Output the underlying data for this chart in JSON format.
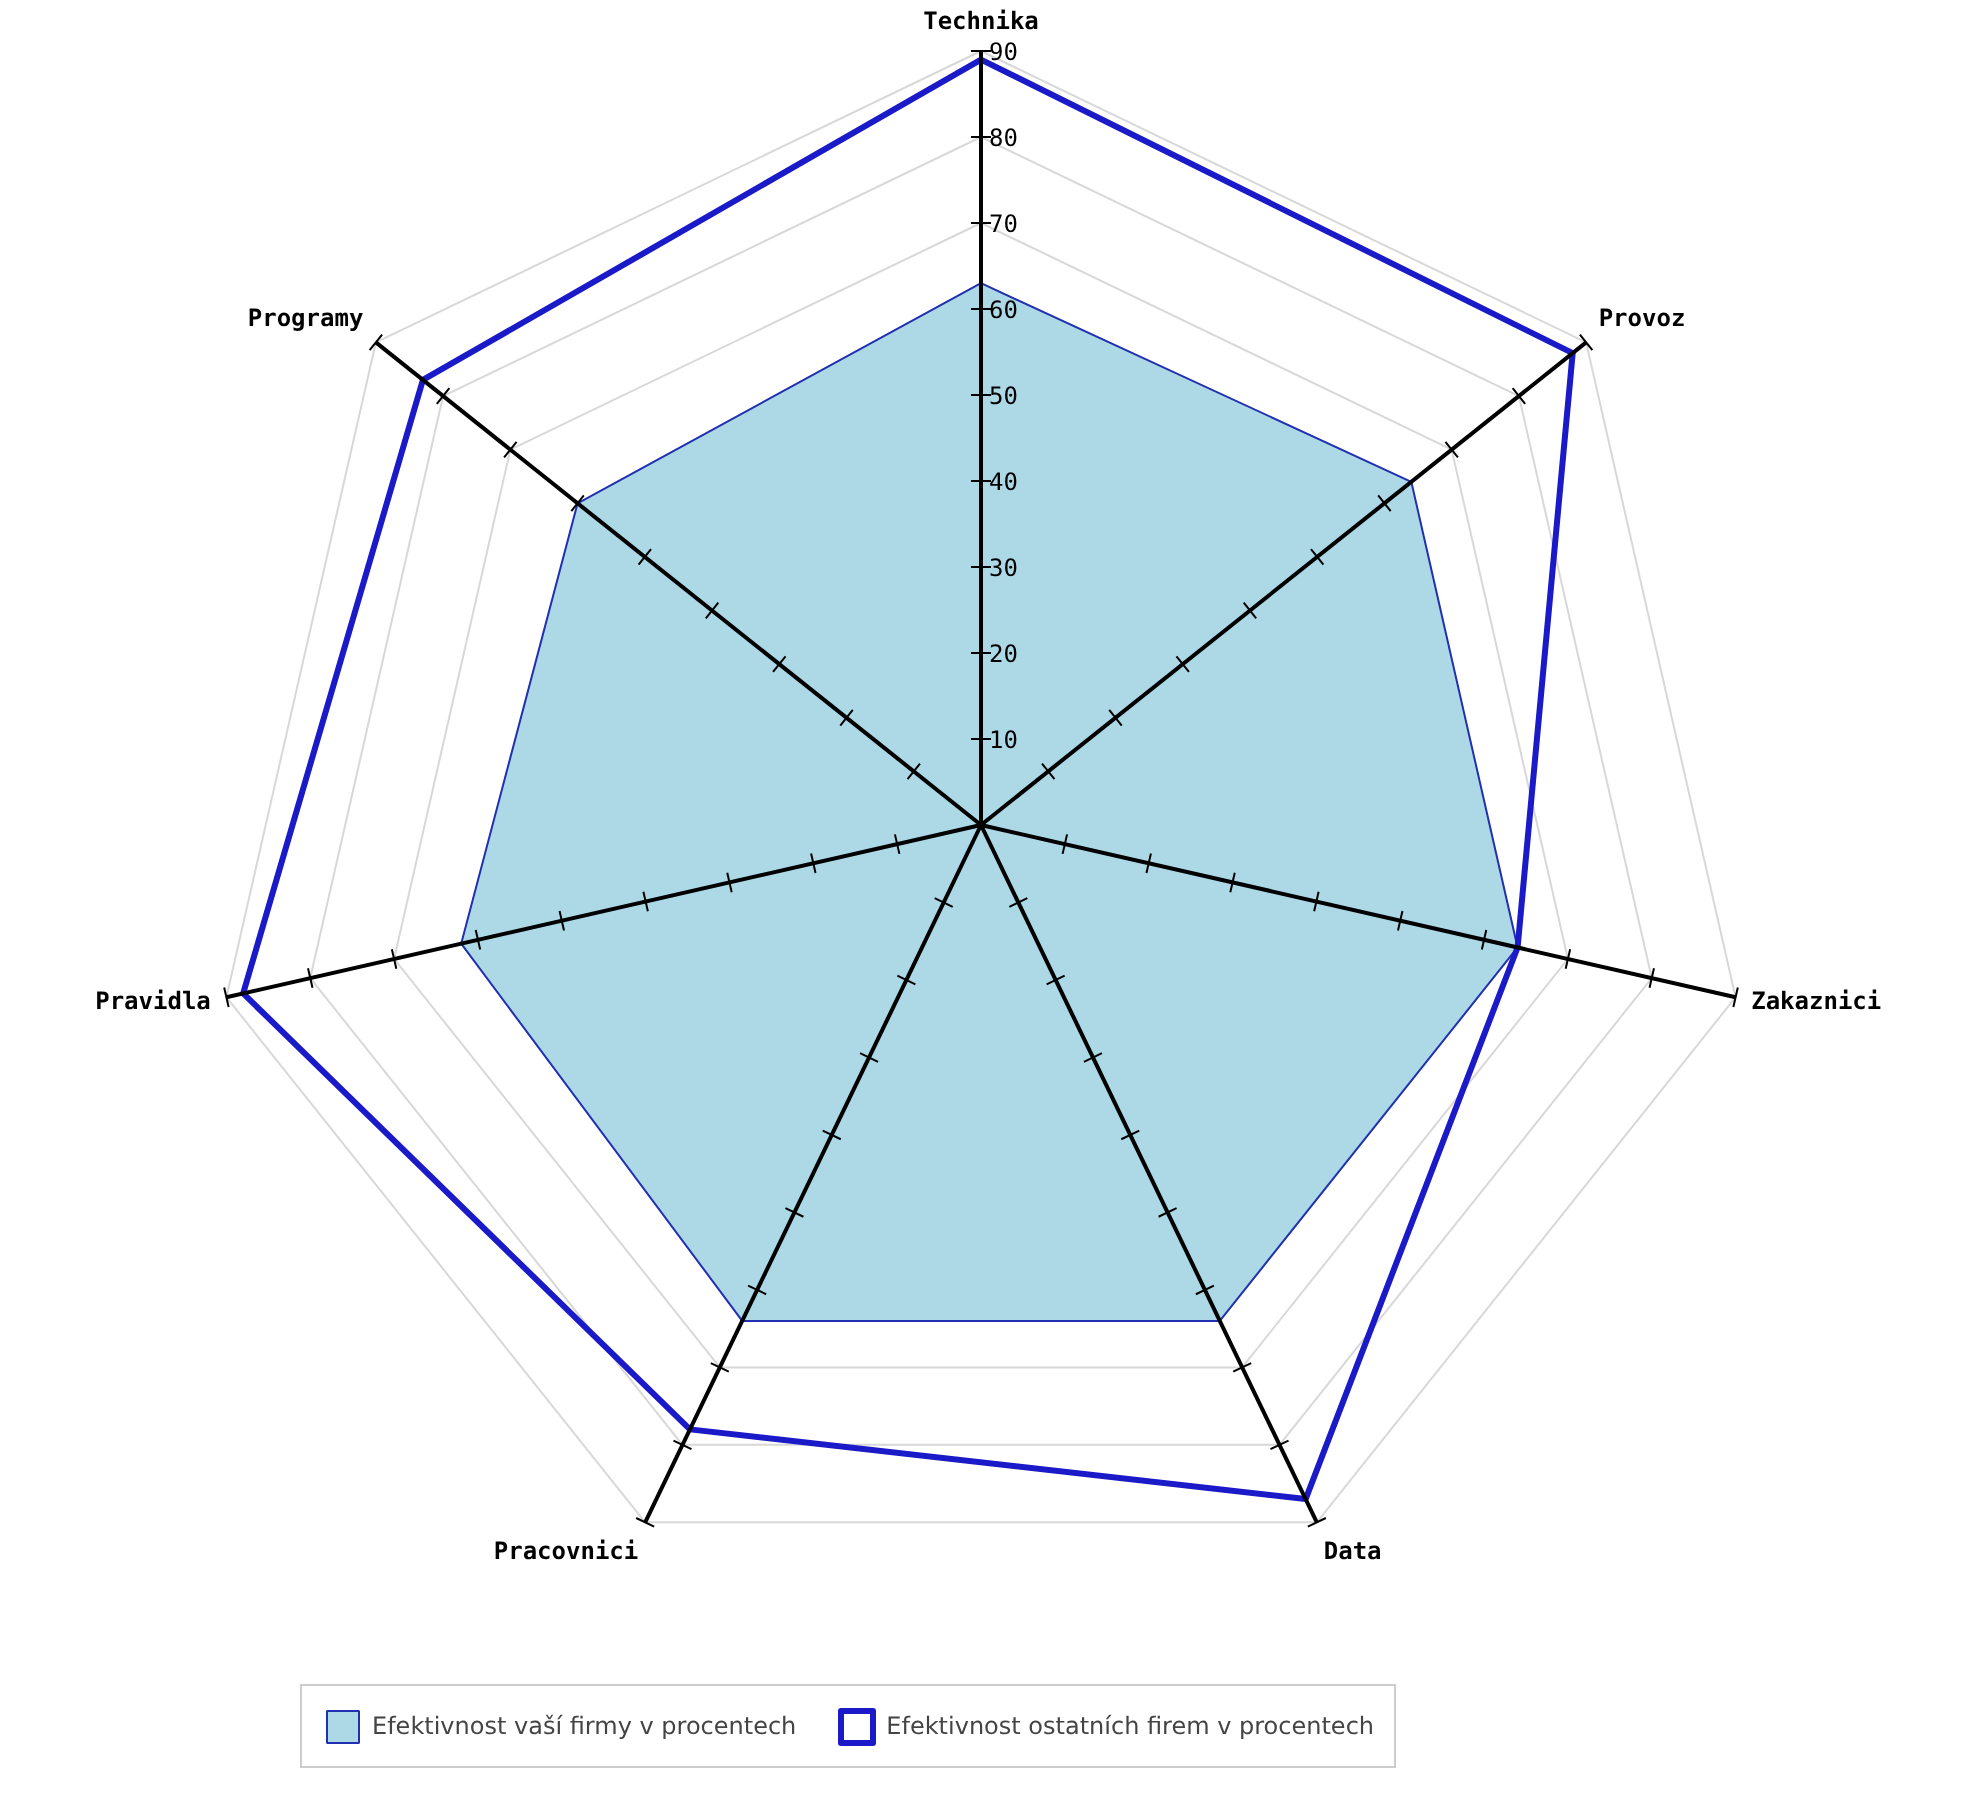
{
  "chart_data": {
    "type": "radar",
    "categories": [
      "Technika",
      "Provoz",
      "Zakaznici",
      "Data",
      "Pracovnici",
      "Pravidla",
      "Programy"
    ],
    "series": [
      {
        "name": "Efektivnost vaší firmy v procentech",
        "color": "#add8e6",
        "values": [
          63,
          64,
          64,
          64,
          64,
          62,
          60
        ]
      },
      {
        "name": "Efektivnost ostatních firem v procentech",
        "color": "#1a1ac8",
        "values": [
          89,
          88,
          64,
          87,
          78,
          88,
          83
        ]
      }
    ],
    "ylim": [
      0,
      90
    ],
    "yticks": [
      10,
      20,
      30,
      40,
      50,
      60,
      70,
      80,
      90
    ],
    "grid": true,
    "legend": "bottom"
  }
}
